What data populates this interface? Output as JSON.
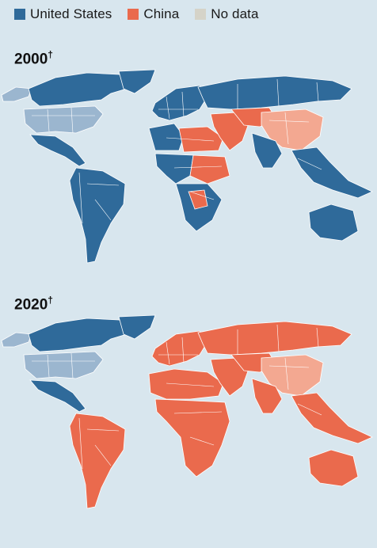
{
  "colors": {
    "background": "#d8e6ee",
    "us": "#2f6a9a",
    "us_light": "#9bb6cf",
    "china": "#ea6a4d",
    "china_light": "#f3a891",
    "nodata": "#d5d3c8",
    "border": "#ffffff"
  },
  "legend": [
    {
      "label": "United States",
      "key": "us"
    },
    {
      "label": "China",
      "key": "china"
    },
    {
      "label": "No data",
      "key": "nodata"
    }
  ],
  "panels": [
    {
      "title": "2000",
      "mark": "†",
      "regions": {
        "north_america": "us_light_canada",
        "usa": "us_light",
        "mexico_central": "us",
        "south_america": "us",
        "europe": "us",
        "north_africa": "mixed",
        "subsaharan": "mixed",
        "middle_east": "china",
        "russia": "us",
        "central_asia": "china",
        "china": "china_light",
        "south_asia": "us",
        "southeast_asia": "us",
        "australia": "us",
        "greenland": "us",
        "alaska": "us_light"
      }
    },
    {
      "title": "2020",
      "mark": "†",
      "regions": {
        "north_america": "us_canada",
        "usa": "us_light",
        "mexico_central": "us",
        "south_america": "china",
        "europe": "china",
        "north_africa": "china",
        "subsaharan": "china",
        "middle_east": "china",
        "russia": "china",
        "central_asia": "china",
        "china": "china_light",
        "south_asia": "china",
        "southeast_asia": "china",
        "australia": "china",
        "greenland": "us",
        "alaska": "us_light"
      }
    }
  ]
}
